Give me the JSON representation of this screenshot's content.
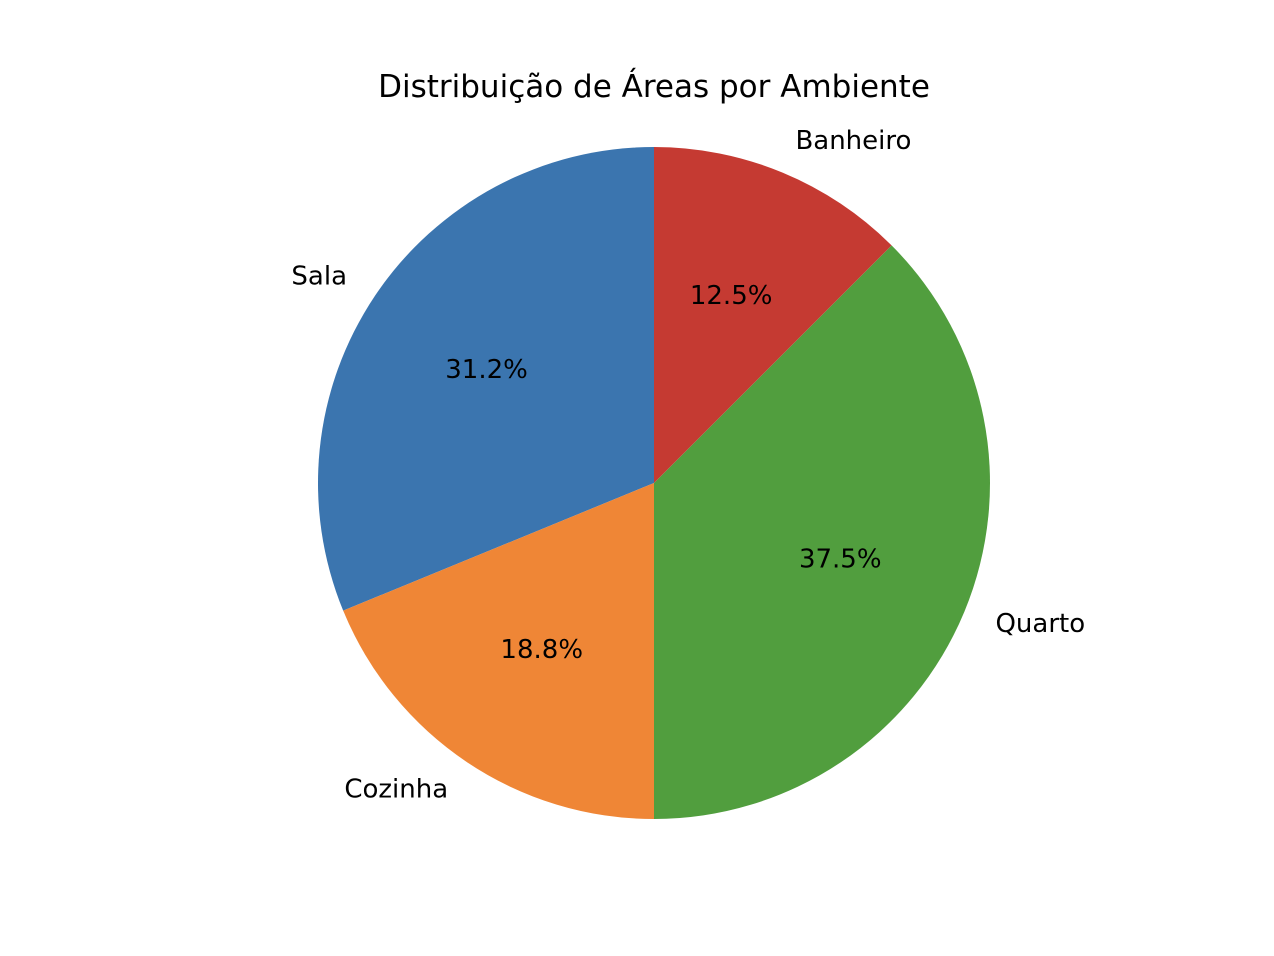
{
  "chart_data": {
    "type": "pie",
    "title": "Distribuição de Áreas por Ambiente",
    "slices": [
      {
        "label": "Sala",
        "value": 31.2,
        "pct_label": "31.2%",
        "color": "#3b75af"
      },
      {
        "label": "Cozinha",
        "value": 18.8,
        "pct_label": "18.8%",
        "color": "#ef8636"
      },
      {
        "label": "Quarto",
        "value": 37.5,
        "pct_label": "37.5%",
        "color": "#519e3e"
      },
      {
        "label": "Banheiro",
        "value": 12.5,
        "pct_label": "12.5%",
        "color": "#c53a32"
      }
    ],
    "start_angle_deg": 90,
    "direction": "counterclockwise",
    "legend": "none"
  }
}
